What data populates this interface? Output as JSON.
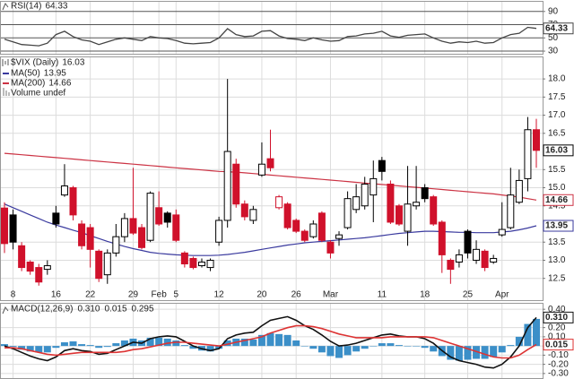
{
  "chart_data": [
    {
      "type": "line",
      "title": "RSI(14)",
      "series": [
        {
          "color": "#444444",
          "values": [
            48,
            44,
            40,
            39,
            38,
            42,
            55,
            60,
            52,
            47,
            45,
            40,
            44,
            48,
            50,
            48,
            46,
            52,
            50,
            49,
            46,
            42,
            41,
            42,
            43,
            50,
            64,
            55,
            52,
            53,
            60,
            61,
            53,
            49,
            48,
            46,
            50,
            47,
            45,
            46,
            52,
            53,
            56,
            57,
            60,
            53,
            51,
            54,
            55,
            56,
            50,
            45,
            42,
            44,
            43,
            45,
            42,
            43,
            50,
            55,
            57,
            66,
            64.33
          ]
        }
      ],
      "ylim": [
        26,
        106
      ],
      "yticks": [
        90,
        70,
        50,
        30
      ],
      "grid": true
    },
    {
      "type": "candlestick",
      "title": "$VIX (Daily)",
      "categories": [
        null,
        "8",
        null,
        null,
        null,
        null,
        "16",
        null,
        null,
        null,
        "22",
        null,
        null,
        null,
        null,
        "29",
        null,
        null,
        "Feb",
        null,
        "5",
        null,
        null,
        null,
        null,
        "12",
        null,
        null,
        null,
        null,
        "20",
        null,
        null,
        null,
        "26",
        null,
        null,
        null,
        "Mar",
        null,
        null,
        null,
        null,
        null,
        "11",
        null,
        null,
        null,
        null,
        "18",
        null,
        null,
        null,
        null,
        "25",
        null,
        null,
        null,
        "Apr",
        null,
        null,
        null,
        null
      ],
      "open": [
        14.44,
        14.25,
        13.4,
        12.95,
        12.8,
        12.75,
        14.3,
        14.8,
        15.0,
        14.0,
        13.9,
        13.25,
        12.6,
        13.2,
        13.65,
        14.15,
        13.9,
        13.55,
        14.45,
        14.3,
        14.25,
        13.2,
        13.05,
        12.85,
        12.8,
        13.5,
        14.1,
        15.65,
        14.55,
        14.1,
        15.35,
        15.8,
        14.45,
        14.55,
        14.1,
        13.8,
        13.65,
        14.3,
        13.5,
        13.6,
        13.9,
        14.4,
        14.5,
        14.8,
        15.75,
        15.1,
        14.5,
        13.8,
        14.5,
        15.0,
        14.75,
        14.05,
        13.0,
        12.95,
        13.8,
        13.0,
        13.25,
        12.95,
        13.7,
        13.9,
        14.6,
        15.25,
        16.6
      ],
      "high": [
        14.6,
        14.4,
        13.5,
        13.0,
        12.9,
        13.0,
        14.5,
        15.65,
        15.05,
        14.1,
        14.0,
        13.3,
        13.3,
        14.0,
        14.3,
        15.55,
        14.0,
        14.9,
        14.9,
        14.35,
        14.4,
        13.25,
        13.1,
        13.05,
        13.05,
        14.2,
        18.0,
        15.8,
        14.65,
        14.5,
        16.25,
        16.6,
        14.8,
        14.6,
        14.15,
        13.85,
        14.1,
        14.35,
        13.55,
        13.8,
        14.9,
        15.1,
        15.3,
        15.75,
        15.85,
        15.2,
        14.55,
        15.6,
        15.6,
        15.1,
        14.8,
        14.1,
        13.05,
        13.3,
        13.85,
        13.55,
        13.3,
        13.15,
        14.6,
        15.55,
        15.5,
        16.95,
        16.9
      ],
      "low": [
        13.2,
        13.3,
        12.7,
        12.6,
        12.3,
        12.6,
        13.9,
        14.75,
        14.1,
        13.3,
        12.8,
        12.4,
        12.35,
        13.1,
        13.5,
        13.7,
        13.3,
        13.5,
        13.95,
        13.9,
        13.5,
        12.8,
        12.75,
        12.8,
        12.7,
        13.4,
        13.9,
        14.45,
        14.1,
        14.0,
        15.3,
        15.45,
        14.4,
        13.85,
        13.75,
        13.5,
        13.6,
        13.5,
        13.05,
        13.4,
        13.85,
        14.3,
        14.4,
        14.05,
        15.2,
        14.0,
        13.95,
        13.4,
        14.4,
        14.6,
        13.95,
        12.65,
        12.35,
        12.8,
        13.05,
        12.9,
        12.7,
        12.9,
        13.65,
        13.85,
        14.55,
        14.9,
        15.55
      ],
      "close": [
        13.46,
        13.5,
        12.8,
        12.7,
        12.4,
        12.85,
        14.0,
        15.05,
        14.25,
        13.4,
        13.3,
        12.5,
        13.2,
        13.65,
        14.15,
        13.75,
        13.35,
        14.85,
        14.0,
        14.05,
        13.55,
        12.9,
        12.8,
        12.95,
        13.0,
        14.1,
        16.0,
        14.55,
        14.2,
        14.4,
        15.65,
        15.55,
        14.75,
        13.9,
        13.8,
        13.55,
        14.0,
        13.55,
        13.2,
        13.7,
        14.7,
        14.75,
        15.1,
        15.25,
        15.45,
        14.05,
        14.0,
        14.55,
        14.6,
        14.7,
        14.0,
        13.15,
        12.75,
        13.15,
        13.2,
        13.3,
        12.8,
        13.05,
        13.85,
        14.8,
        15.2,
        16.6,
        16.03
      ],
      "up_color": "#000000",
      "down_color": "#d0112b",
      "series": [
        {
          "name": "MA(50)",
          "color": "#3a3a9e",
          "values": [
            14.55,
            14.45,
            14.35,
            14.25,
            14.15,
            14.05,
            13.97,
            13.9,
            13.83,
            13.76,
            13.68,
            13.6,
            13.52,
            13.45,
            13.38,
            13.32,
            13.27,
            13.22,
            13.19,
            13.17,
            13.15,
            13.14,
            13.13,
            13.13,
            13.13,
            13.14,
            13.16,
            13.19,
            13.22,
            13.26,
            13.3,
            13.34,
            13.38,
            13.42,
            13.45,
            13.48,
            13.5,
            13.52,
            13.54,
            13.56,
            13.58,
            13.6,
            13.62,
            13.65,
            13.68,
            13.71,
            13.74,
            13.76,
            13.78,
            13.8,
            13.8,
            13.79,
            13.78,
            13.77,
            13.77,
            13.76,
            13.76,
            13.76,
            13.78,
            13.8,
            13.84,
            13.89,
            13.95
          ]
        },
        {
          "name": "MA(200)",
          "color": "#cc3344",
          "values": [
            15.95,
            15.93,
            15.91,
            15.89,
            15.87,
            15.85,
            15.83,
            15.81,
            15.79,
            15.77,
            15.75,
            15.73,
            15.71,
            15.69,
            15.67,
            15.65,
            15.63,
            15.61,
            15.59,
            15.57,
            15.55,
            15.53,
            15.51,
            15.49,
            15.47,
            15.45,
            15.44,
            15.43,
            15.41,
            15.39,
            15.37,
            15.35,
            15.33,
            15.31,
            15.29,
            15.27,
            15.25,
            15.23,
            15.21,
            15.19,
            15.17,
            15.15,
            15.13,
            15.11,
            15.09,
            15.07,
            15.05,
            15.03,
            15.01,
            14.99,
            14.97,
            14.95,
            14.93,
            14.91,
            14.89,
            14.87,
            14.85,
            14.83,
            14.8,
            14.77,
            14.74,
            14.7,
            14.66
          ]
        }
      ],
      "volume_label": "Volume undef",
      "ylim": [
        11.9,
        18.62
      ],
      "yticks": [
        {
          "value": 18,
          "label": "18.0"
        },
        17.5,
        {
          "value": 17,
          "label": "17.0"
        },
        16.5,
        15.5,
        {
          "value": 15,
          "label": "15.0"
        },
        14.5,
        13.5,
        {
          "value": 13,
          "label": "13.0"
        },
        12.5
      ],
      "grid": true
    },
    {
      "type": "macd",
      "title": "MACD(12,26,9)",
      "series": [
        {
          "type": "line",
          "color": "#111111",
          "values": [
            0.0,
            -0.03,
            -0.07,
            -0.11,
            -0.14,
            -0.16,
            -0.12,
            -0.05,
            -0.03,
            -0.05,
            -0.06,
            -0.09,
            -0.08,
            -0.04,
            0.0,
            0.04,
            0.03,
            0.08,
            0.1,
            0.11,
            0.1,
            0.05,
            0.0,
            -0.03,
            -0.05,
            -0.03,
            0.08,
            0.12,
            0.14,
            0.15,
            0.22,
            0.28,
            0.3,
            0.32,
            0.28,
            0.22,
            0.18,
            0.12,
            0.05,
            0.0,
            0.01,
            0.03,
            0.06,
            0.09,
            0.12,
            0.13,
            0.11,
            0.1,
            0.1,
            0.08,
            0.03,
            -0.05,
            -0.12,
            -0.16,
            -0.18,
            -0.2,
            -0.23,
            -0.24,
            -0.2,
            -0.12,
            0.0,
            0.2,
            0.31
          ],
          "value_labels": [
            null,
            null,
            null,
            null,
            null,
            null,
            null,
            null,
            null,
            null,
            null,
            null,
            null,
            null,
            null,
            null,
            null,
            null,
            null,
            null,
            null,
            null,
            null,
            null,
            null,
            null,
            null,
            null,
            null,
            null,
            null,
            null,
            null,
            null,
            null,
            null,
            null,
            null,
            null,
            null,
            null,
            null,
            null,
            null,
            null,
            null,
            null,
            null,
            null,
            null,
            null,
            null,
            null,
            null,
            null,
            null,
            null,
            null,
            null,
            null,
            null,
            null,
            "0.310"
          ]
        },
        {
          "type": "line",
          "color": "#dd3333",
          "values": [
            -0.02,
            -0.02,
            -0.03,
            -0.05,
            -0.07,
            -0.09,
            -0.1,
            -0.09,
            -0.08,
            -0.07,
            -0.07,
            -0.07,
            -0.07,
            -0.07,
            -0.06,
            -0.04,
            -0.03,
            -0.01,
            0.01,
            0.03,
            0.04,
            0.04,
            0.03,
            0.02,
            0.01,
            0.0,
            0.02,
            0.04,
            0.06,
            0.08,
            0.1,
            0.14,
            0.17,
            0.2,
            0.22,
            0.22,
            0.21,
            0.19,
            0.16,
            0.13,
            0.11,
            0.09,
            0.09,
            0.09,
            0.09,
            0.1,
            0.1,
            0.1,
            0.1,
            0.1,
            0.09,
            0.06,
            0.03,
            0.0,
            -0.03,
            -0.06,
            -0.09,
            -0.12,
            -0.13,
            -0.13,
            -0.1,
            -0.04,
            0.015
          ],
          "value_labels": [
            null,
            null,
            null,
            null,
            null,
            null,
            null,
            null,
            null,
            null,
            null,
            null,
            null,
            null,
            null,
            null,
            null,
            null,
            null,
            null,
            null,
            null,
            null,
            null,
            null,
            null,
            null,
            null,
            null,
            null,
            null,
            null,
            null,
            null,
            null,
            null,
            null,
            null,
            null,
            null,
            null,
            null,
            null,
            null,
            null,
            null,
            null,
            null,
            null,
            null,
            null,
            null,
            null,
            null,
            null,
            null,
            null,
            null,
            null,
            null,
            null,
            null,
            "0.015"
          ]
        },
        {
          "type": "bar",
          "color": "#3b8fc8",
          "values": [
            0.02,
            -0.01,
            -0.04,
            -0.06,
            -0.07,
            -0.07,
            -0.02,
            0.04,
            0.05,
            0.02,
            0.01,
            -0.02,
            -0.01,
            0.03,
            0.06,
            0.08,
            0.06,
            0.09,
            0.09,
            0.08,
            0.06,
            0.01,
            -0.03,
            -0.05,
            -0.06,
            -0.03,
            0.06,
            0.08,
            0.08,
            0.07,
            0.12,
            0.14,
            0.13,
            0.12,
            0.06,
            0.0,
            -0.03,
            -0.07,
            -0.11,
            -0.13,
            -0.1,
            -0.06,
            -0.03,
            0.0,
            0.03,
            0.03,
            0.01,
            0.0,
            0.0,
            -0.02,
            -0.06,
            -0.11,
            -0.15,
            -0.16,
            -0.15,
            -0.14,
            -0.14,
            -0.12,
            -0.07,
            0.01,
            0.1,
            0.24,
            0.295
          ],
          "value_labels": [
            null,
            null,
            null,
            null,
            null,
            null,
            null,
            null,
            null,
            null,
            null,
            null,
            null,
            null,
            null,
            null,
            null,
            null,
            null,
            null,
            null,
            null,
            null,
            null,
            null,
            null,
            null,
            null,
            null,
            null,
            null,
            null,
            null,
            null,
            null,
            null,
            null,
            null,
            null,
            null,
            null,
            null,
            null,
            null,
            null,
            null,
            null,
            null,
            null,
            null,
            null,
            null,
            null,
            null,
            null,
            null,
            null,
            null,
            null,
            null,
            null,
            null,
            "0.295"
          ]
        }
      ],
      "ylim": [
        -0.35,
        0.47
      ],
      "yticks": [
        {
          "value": 0.4,
          "label": "0.40"
        },
        {
          "value": 0.2,
          "label": "0.20"
        },
        {
          "value": 0.1,
          "label": "0.10"
        },
        {
          "value": 0,
          "label": "0.00"
        },
        {
          "value": -0.1,
          "label": "-0.10"
        },
        {
          "value": -0.2,
          "label": "-0.20"
        },
        {
          "value": -0.3,
          "label": "-0.30"
        }
      ],
      "grid": true
    }
  ]
}
